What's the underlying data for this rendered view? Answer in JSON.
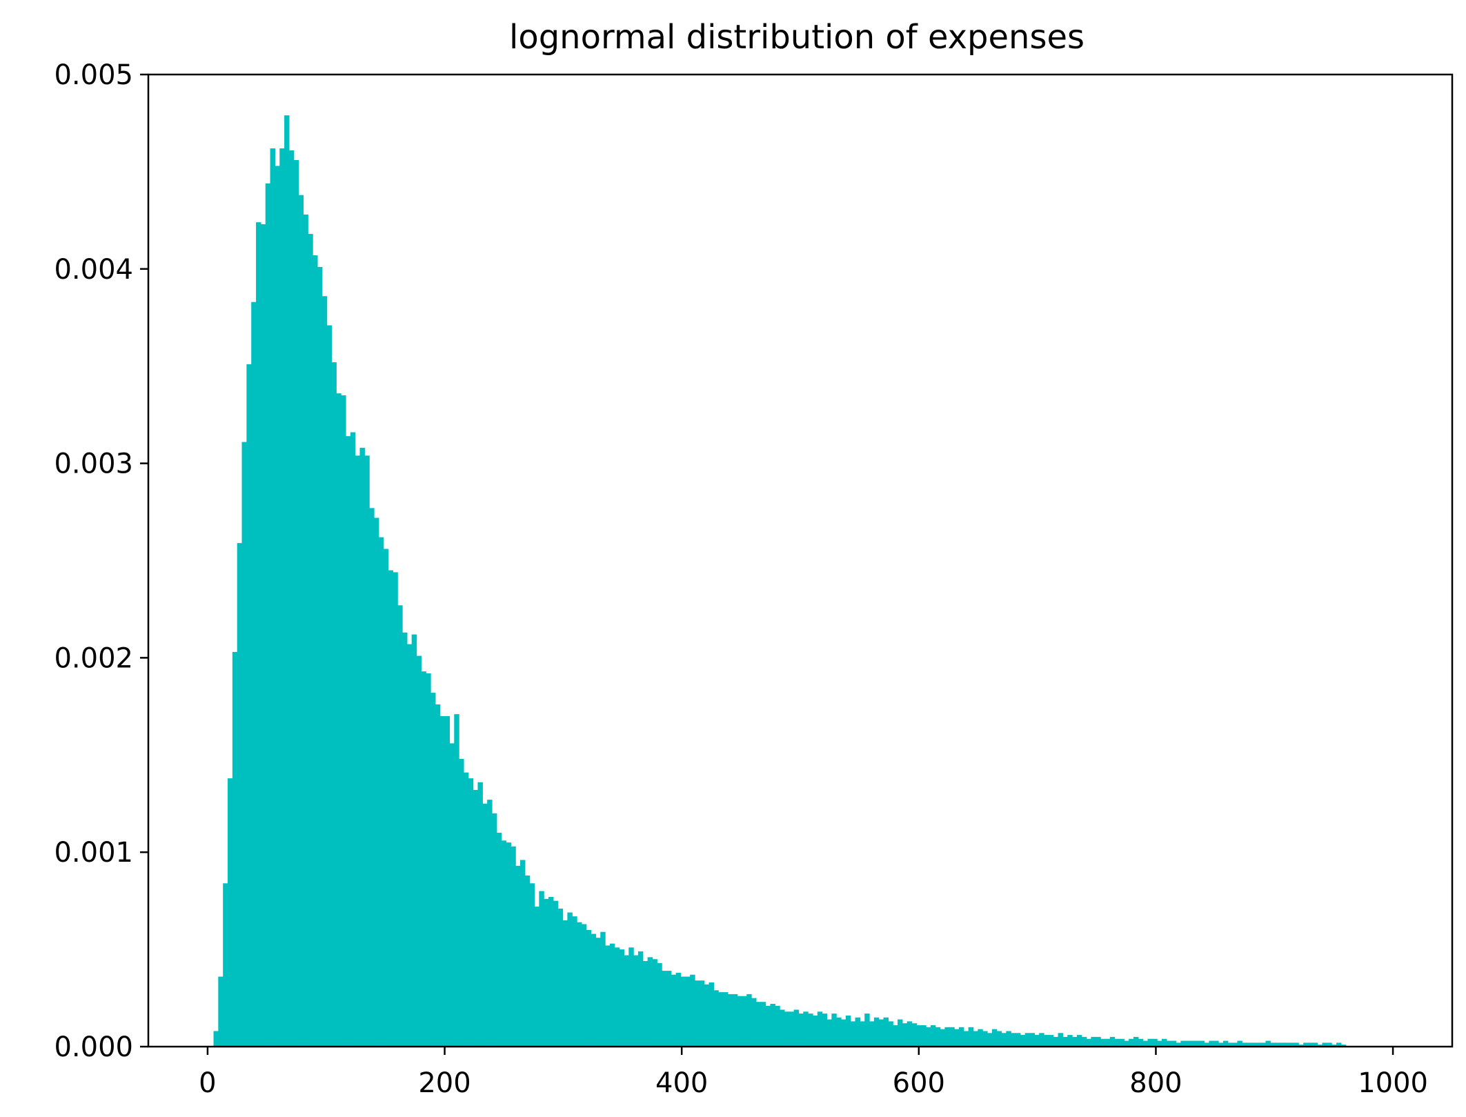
{
  "chart_data": {
    "type": "bar",
    "title": "lognormal distribution of expenses",
    "xlabel": "",
    "ylabel": "",
    "xlim": [
      -50,
      1050
    ],
    "ylim": [
      0,
      0.005
    ],
    "x_ticks": [
      0,
      200,
      400,
      600,
      800,
      1000
    ],
    "x_tick_labels": [
      "0",
      "200",
      "400",
      "600",
      "800",
      "1000"
    ],
    "y_ticks": [
      0,
      0.001,
      0.002,
      0.003,
      0.004,
      0.005
    ],
    "y_tick_labels": [
      "0.000",
      "0.001",
      "0.002",
      "0.003",
      "0.004",
      "0.005"
    ],
    "grid": false,
    "bar_color": "#00bfbf",
    "bins": {
      "start": 5,
      "width": 3.98,
      "values": [
        8e-05,
        0.00036,
        0.00084,
        0.00138,
        0.00203,
        0.00259,
        0.00311,
        0.00351,
        0.00383,
        0.00424,
        0.00423,
        0.00444,
        0.00462,
        0.00453,
        0.00462,
        0.00479,
        0.00461,
        0.00456,
        0.00438,
        0.00428,
        0.00418,
        0.00407,
        0.00401,
        0.00386,
        0.00371,
        0.00352,
        0.00336,
        0.00335,
        0.00314,
        0.00316,
        0.00304,
        0.00308,
        0.00304,
        0.00277,
        0.00272,
        0.00262,
        0.00256,
        0.00245,
        0.00244,
        0.00227,
        0.00213,
        0.00207,
        0.00212,
        0.00201,
        0.00193,
        0.00192,
        0.00182,
        0.00176,
        0.0017,
        0.0017,
        0.00156,
        0.00171,
        0.00148,
        0.00141,
        0.00138,
        0.00132,
        0.00136,
        0.00125,
        0.00127,
        0.0012,
        0.0011,
        0.00106,
        0.00105,
        0.00103,
        0.00093,
        0.00096,
        0.00088,
        0.00084,
        0.00072,
        0.0008,
        0.00076,
        0.00077,
        0.00075,
        0.00071,
        0.00065,
        0.00069,
        0.00067,
        0.00064,
        0.00063,
        0.0006,
        0.00058,
        0.00056,
        0.00059,
        0.00052,
        0.00053,
        0.00051,
        0.0005,
        0.00047,
        0.00051,
        0.00047,
        0.00049,
        0.00044,
        0.00046,
        0.00045,
        0.00043,
        0.00039,
        0.00039,
        0.00037,
        0.00038,
        0.00036,
        0.00036,
        0.00037,
        0.00034,
        0.00034,
        0.00032,
        0.00033,
        0.00029,
        0.00028,
        0.00028,
        0.00027,
        0.00027,
        0.00026,
        0.00026,
        0.00027,
        0.00025,
        0.00023,
        0.00023,
        0.00021,
        0.00022,
        0.00021,
        0.00019,
        0.00018,
        0.00018,
        0.00019,
        0.00017,
        0.00018,
        0.00017,
        0.00016,
        0.00018,
        0.00017,
        0.00014,
        0.00017,
        0.00015,
        0.00014,
        0.00016,
        0.00013,
        0.00015,
        0.00013,
        0.00017,
        0.00013,
        0.00015,
        0.00014,
        0.00015,
        0.00013,
        0.00011,
        0.00014,
        0.00012,
        0.00013,
        0.00012,
        0.00011,
        0.00011,
        0.0001,
        0.00011,
        0.0001,
        9e-05,
        0.0001,
        0.0001,
        9e-05,
        0.0001,
        8e-05,
        0.0001,
        8e-05,
        9e-05,
        8e-05,
        7e-05,
        9e-05,
        8e-05,
        7e-05,
        8e-05,
        7e-05,
        7e-05,
        6e-05,
        7e-05,
        7e-05,
        6e-05,
        7e-05,
        6e-05,
        6e-05,
        5e-05,
        7e-05,
        5e-05,
        6e-05,
        5e-05,
        6e-05,
        5e-05,
        4e-05,
        5e-05,
        5e-05,
        4e-05,
        4e-05,
        5e-05,
        4e-05,
        4e-05,
        3e-05,
        4e-05,
        5e-05,
        4e-05,
        3e-05,
        4e-05,
        4e-05,
        3e-05,
        4e-05,
        3e-05,
        3e-05,
        2e-05,
        3e-05,
        3e-05,
        3e-05,
        3e-05,
        3e-05,
        2e-05,
        3e-05,
        3e-05,
        2e-05,
        3e-05,
        2e-05,
        2e-05,
        3e-05,
        2e-05,
        2e-05,
        2e-05,
        2e-05,
        2e-05,
        3e-05,
        2e-05,
        2e-05,
        2e-05,
        2e-05,
        2e-05,
        2e-05,
        1e-05,
        2e-05,
        2e-05,
        2e-05,
        1e-05,
        2e-05,
        2e-05,
        1e-05,
        2e-05,
        1e-05
      ]
    }
  }
}
